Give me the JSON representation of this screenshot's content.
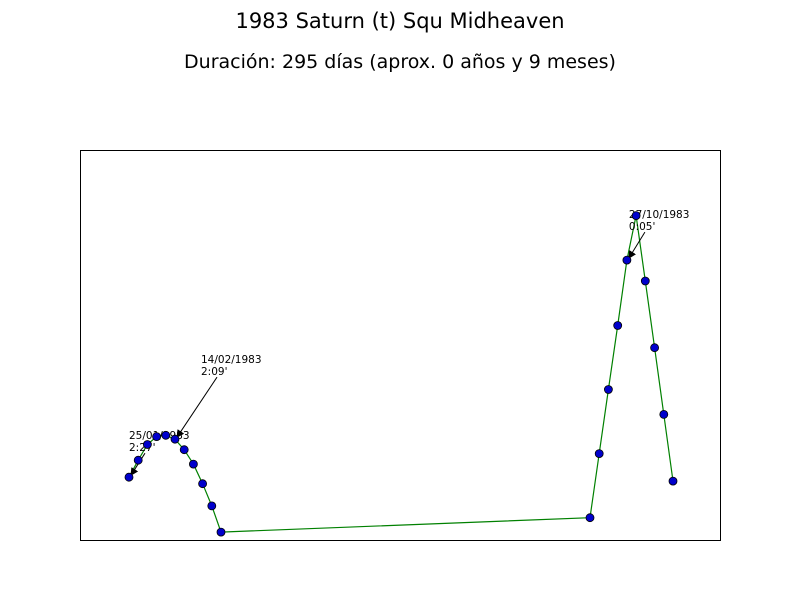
{
  "chart_data": {
    "type": "line",
    "title": "1983 Saturn (t) Squ Midheaven",
    "subtitle": "Duración: 295 días (aprox. 0 años y 9 meses)",
    "xlabel": "",
    "ylabel": "",
    "grid": false,
    "colors": {
      "line": "#008000",
      "marker": "#0000cc",
      "marker_edge": "#000000"
    },
    "x_range": [
      "1983-01-25",
      "1983-11-15"
    ],
    "y_range": [
      0,
      2.6
    ],
    "series": [
      {
        "points": [
          {
            "x": "1983-01-25",
            "y": 0.45
          },
          {
            "x": "1983-01-29",
            "y": 0.58
          },
          {
            "x": "1983-02-02",
            "y": 0.7
          },
          {
            "x": "1983-02-06",
            "y": 0.76
          },
          {
            "x": "1983-02-10",
            "y": 0.77
          },
          {
            "x": "1983-02-14",
            "y": 0.74
          },
          {
            "x": "1983-02-18",
            "y": 0.66
          },
          {
            "x": "1983-02-22",
            "y": 0.55
          },
          {
            "x": "1983-02-26",
            "y": 0.4
          },
          {
            "x": "1983-03-02",
            "y": 0.23
          },
          {
            "x": "1983-03-06",
            "y": 0.03
          },
          {
            "x": "1983-08-12",
            "y": 0.14
          },
          {
            "x": "1983-08-16",
            "y": 0.63
          },
          {
            "x": "1983-08-20",
            "y": 1.12
          },
          {
            "x": "1983-08-24",
            "y": 1.61
          },
          {
            "x": "1983-08-28",
            "y": 2.11
          },
          {
            "x": "1983-09-01",
            "y": 2.45
          },
          {
            "x": "1983-09-05",
            "y": 1.95
          },
          {
            "x": "1983-09-09",
            "y": 1.44
          },
          {
            "x": "1983-09-13",
            "y": 0.93
          },
          {
            "x": "1983-09-17",
            "y": 0.42
          }
        ]
      }
    ],
    "annotations": [
      {
        "date": "25/01/1983",
        "value": "2:27'",
        "point_index": 0
      },
      {
        "date": "14/02/1983",
        "value": "2:09'",
        "point_index": 5
      },
      {
        "date": "27/10/1983",
        "value": "0:05'",
        "point_index": 15
      }
    ]
  }
}
